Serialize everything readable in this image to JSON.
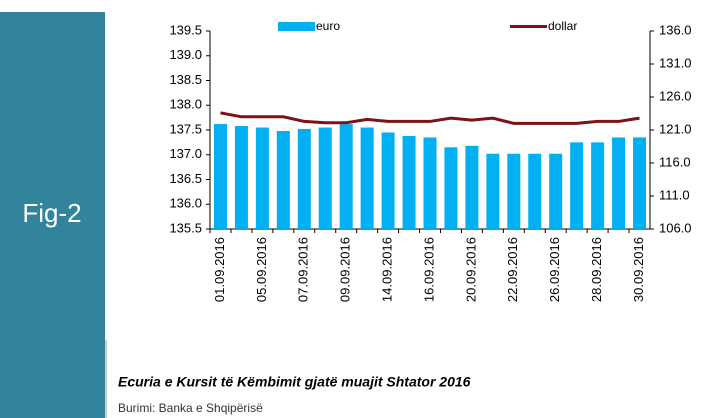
{
  "figure_label": "Fig-2",
  "caption": "Ecuria e Kursit të Këmbimit gjatë muajit Shtator 2016",
  "source": "Burimi: Banka e Shqipërisë",
  "chart_data": {
    "type": "bar_line",
    "categories": [
      "01.09.2016",
      null,
      "05.09.2016",
      null,
      "07.09.2016",
      null,
      "09.09.2016",
      null,
      "14.09.2016",
      null,
      "16.09.2016",
      null,
      "20.09.2016",
      null,
      "22.09.2016",
      null,
      "26.09.2016",
      null,
      "28.09.2016",
      null,
      "30.09.2016"
    ],
    "series": [
      {
        "name": "euro",
        "color": "#00b0f0",
        "kind": "bar",
        "values": [
          137.62,
          137.58,
          137.55,
          137.48,
          137.52,
          137.55,
          137.62,
          137.55,
          137.45,
          137.38,
          137.35,
          137.15,
          137.18,
          137.02,
          137.02,
          137.02,
          137.02,
          137.25,
          137.25,
          137.35,
          137.35
        ]
      },
      {
        "name": "dollar",
        "color": "#7b1416",
        "kind": "line",
        "axis": "y2",
        "values": [
          123.6,
          123.0,
          123.0,
          123.0,
          122.3,
          122.1,
          122.1,
          122.6,
          122.3,
          122.3,
          122.3,
          122.8,
          122.5,
          122.8,
          122.0,
          122.0,
          122.0,
          122.0,
          122.3,
          122.3,
          122.8
        ]
      }
    ],
    "ylim": [
      135.5,
      139.5
    ],
    "yticks": [
      135.5,
      {
        "value": 136,
        "label": "136.0"
      },
      136.5,
      {
        "value": 137,
        "label": "137.0"
      },
      137.5,
      {
        "value": 138,
        "label": "138.0"
      },
      138.5,
      {
        "value": 139,
        "label": "139.0"
      },
      139.5
    ],
    "y2lim": [
      106,
      136
    ],
    "y2ticks": [
      {
        "value": 106,
        "label": "106.0"
      },
      {
        "value": 111,
        "label": "111.0"
      },
      {
        "value": 116,
        "label": "116.0"
      },
      {
        "value": 121,
        "label": "121.0"
      },
      {
        "value": 126,
        "label": "126.0"
      },
      {
        "value": 131,
        "label": "131.0"
      },
      {
        "value": 136,
        "label": "136.0"
      }
    ],
    "legend": "top"
  }
}
